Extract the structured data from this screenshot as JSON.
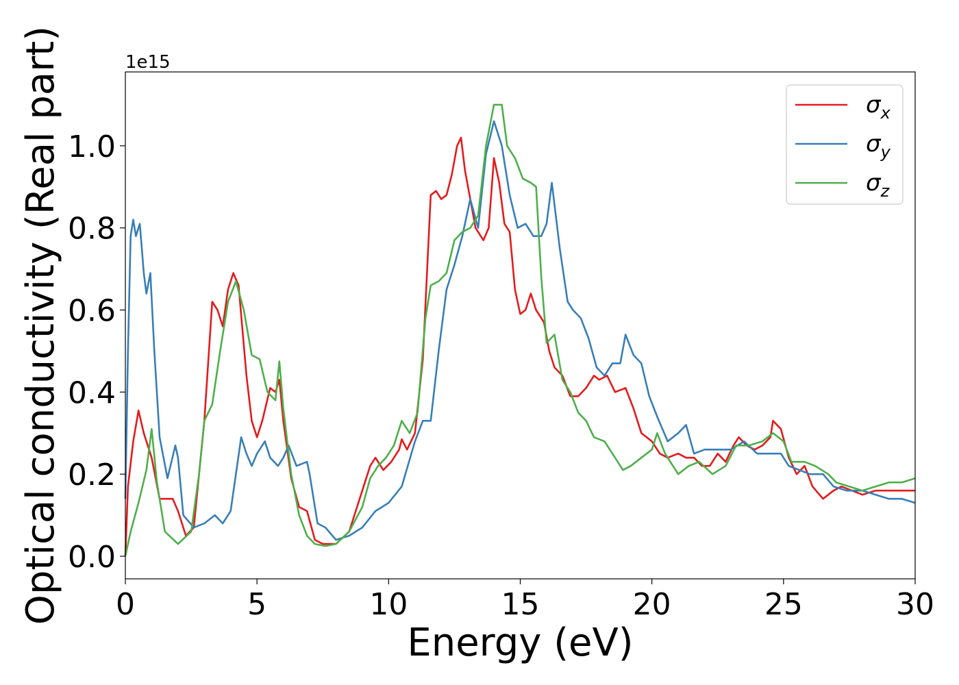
{
  "chart_data": {
    "type": "line",
    "xlabel": "Energy (eV)",
    "ylabel": "Optical conductivity (Real part)",
    "y_offset_label": "1e15",
    "xlim": [
      0,
      30
    ],
    "ylim": [
      -0.055,
      1.18
    ],
    "x_ticks": [
      0,
      5,
      10,
      15,
      20,
      25,
      30
    ],
    "x_tick_labels": [
      "0",
      "5",
      "10",
      "15",
      "20",
      "25",
      "30"
    ],
    "y_ticks": [
      0.0,
      0.2,
      0.4,
      0.6,
      0.8,
      1.0
    ],
    "y_tick_labels": [
      "0.0",
      "0.2",
      "0.4",
      "0.6",
      "0.8",
      "1.0"
    ],
    "grid": false,
    "legend_position": "top-right",
    "series": [
      {
        "name": "σ",
        "subscript": "x",
        "color": "#e41a1c",
        "points": [
          [
            0,
            0
          ],
          [
            0.1,
            0.17
          ],
          [
            0.3,
            0.28
          ],
          [
            0.5,
            0.355
          ],
          [
            0.7,
            0.3
          ],
          [
            1.0,
            0.24
          ],
          [
            1.3,
            0.14
          ],
          [
            1.6,
            0.14
          ],
          [
            1.8,
            0.14
          ],
          [
            2.0,
            0.11
          ],
          [
            2.3,
            0.05
          ],
          [
            2.6,
            0.07
          ],
          [
            3.0,
            0.33
          ],
          [
            3.3,
            0.62
          ],
          [
            3.5,
            0.6
          ],
          [
            3.7,
            0.56
          ],
          [
            3.9,
            0.65
          ],
          [
            4.1,
            0.69
          ],
          [
            4.3,
            0.66
          ],
          [
            4.6,
            0.44
          ],
          [
            4.8,
            0.33
          ],
          [
            5.0,
            0.29
          ],
          [
            5.2,
            0.33
          ],
          [
            5.5,
            0.41
          ],
          [
            5.7,
            0.4
          ],
          [
            5.85,
            0.43
          ],
          [
            6.0,
            0.33
          ],
          [
            6.3,
            0.19
          ],
          [
            6.6,
            0.12
          ],
          [
            6.9,
            0.11
          ],
          [
            7.2,
            0.04
          ],
          [
            7.5,
            0.03
          ],
          [
            8.0,
            0.03
          ],
          [
            8.5,
            0.06
          ],
          [
            9.0,
            0.16
          ],
          [
            9.3,
            0.22
          ],
          [
            9.5,
            0.24
          ],
          [
            9.8,
            0.21
          ],
          [
            10.1,
            0.23
          ],
          [
            10.4,
            0.26
          ],
          [
            10.5,
            0.285
          ],
          [
            10.7,
            0.26
          ],
          [
            11.0,
            0.3
          ],
          [
            11.3,
            0.48
          ],
          [
            11.6,
            0.88
          ],
          [
            11.8,
            0.89
          ],
          [
            12.0,
            0.87
          ],
          [
            12.2,
            0.88
          ],
          [
            12.4,
            0.93
          ],
          [
            12.6,
            1.0
          ],
          [
            12.75,
            1.02
          ],
          [
            12.9,
            0.94
          ],
          [
            13.1,
            0.87
          ],
          [
            13.3,
            0.8
          ],
          [
            13.6,
            0.77
          ],
          [
            13.8,
            0.8
          ],
          [
            14.0,
            0.97
          ],
          [
            14.2,
            0.91
          ],
          [
            14.4,
            0.81
          ],
          [
            14.6,
            0.79
          ],
          [
            14.8,
            0.65
          ],
          [
            15.0,
            0.59
          ],
          [
            15.2,
            0.6
          ],
          [
            15.4,
            0.64
          ],
          [
            15.6,
            0.6
          ],
          [
            15.9,
            0.57
          ],
          [
            16.1,
            0.5
          ],
          [
            16.3,
            0.46
          ],
          [
            16.6,
            0.44
          ],
          [
            16.9,
            0.39
          ],
          [
            17.2,
            0.39
          ],
          [
            17.5,
            0.41
          ],
          [
            17.8,
            0.44
          ],
          [
            18.0,
            0.43
          ],
          [
            18.3,
            0.44
          ],
          [
            18.6,
            0.4
          ],
          [
            19.0,
            0.41
          ],
          [
            19.3,
            0.36
          ],
          [
            19.6,
            0.3
          ],
          [
            20.0,
            0.28
          ],
          [
            20.3,
            0.25
          ],
          [
            20.6,
            0.24
          ],
          [
            21.0,
            0.25
          ],
          [
            21.3,
            0.24
          ],
          [
            21.6,
            0.24
          ],
          [
            21.9,
            0.22
          ],
          [
            22.2,
            0.22
          ],
          [
            22.5,
            0.25
          ],
          [
            22.8,
            0.23
          ],
          [
            23.1,
            0.27
          ],
          [
            23.3,
            0.29
          ],
          [
            23.6,
            0.27
          ],
          [
            23.9,
            0.26
          ],
          [
            24.2,
            0.27
          ],
          [
            24.5,
            0.29
          ],
          [
            24.6,
            0.33
          ],
          [
            24.9,
            0.31
          ],
          [
            25.2,
            0.24
          ],
          [
            25.5,
            0.2
          ],
          [
            25.8,
            0.22
          ],
          [
            26.1,
            0.17
          ],
          [
            26.5,
            0.14
          ],
          [
            26.9,
            0.16
          ],
          [
            27.2,
            0.17
          ],
          [
            27.6,
            0.16
          ],
          [
            28.0,
            0.15
          ],
          [
            28.5,
            0.16
          ],
          [
            29.0,
            0.16
          ],
          [
            29.5,
            0.16
          ],
          [
            30.0,
            0.16
          ]
        ]
      },
      {
        "name": "σ",
        "subscript": "y",
        "color": "#377eb8",
        "points": [
          [
            0,
            0.14
          ],
          [
            0.1,
            0.5
          ],
          [
            0.2,
            0.78
          ],
          [
            0.3,
            0.82
          ],
          [
            0.4,
            0.78
          ],
          [
            0.55,
            0.81
          ],
          [
            0.7,
            0.69
          ],
          [
            0.8,
            0.64
          ],
          [
            0.95,
            0.69
          ],
          [
            1.1,
            0.5
          ],
          [
            1.3,
            0.29
          ],
          [
            1.6,
            0.19
          ],
          [
            1.9,
            0.27
          ],
          [
            2.0,
            0.24
          ],
          [
            2.2,
            0.1
          ],
          [
            2.6,
            0.07
          ],
          [
            3.0,
            0.08
          ],
          [
            3.4,
            0.1
          ],
          [
            3.7,
            0.08
          ],
          [
            4.0,
            0.11
          ],
          [
            4.2,
            0.2
          ],
          [
            4.4,
            0.29
          ],
          [
            4.6,
            0.25
          ],
          [
            4.8,
            0.22
          ],
          [
            5.0,
            0.25
          ],
          [
            5.3,
            0.28
          ],
          [
            5.5,
            0.24
          ],
          [
            5.8,
            0.22
          ],
          [
            6.0,
            0.24
          ],
          [
            6.2,
            0.27
          ],
          [
            6.5,
            0.22
          ],
          [
            6.9,
            0.23
          ],
          [
            7.0,
            0.2
          ],
          [
            7.3,
            0.08
          ],
          [
            7.6,
            0.07
          ],
          [
            8.0,
            0.04
          ],
          [
            8.5,
            0.05
          ],
          [
            9.0,
            0.07
          ],
          [
            9.5,
            0.11
          ],
          [
            10.0,
            0.13
          ],
          [
            10.5,
            0.17
          ],
          [
            11.0,
            0.28
          ],
          [
            11.3,
            0.33
          ],
          [
            11.6,
            0.33
          ],
          [
            11.9,
            0.5
          ],
          [
            12.2,
            0.65
          ],
          [
            12.5,
            0.71
          ],
          [
            12.8,
            0.78
          ],
          [
            13.1,
            0.87
          ],
          [
            13.4,
            0.8
          ],
          [
            13.7,
            0.98
          ],
          [
            14.0,
            1.06
          ],
          [
            14.3,
            1.0
          ],
          [
            14.6,
            0.88
          ],
          [
            14.9,
            0.8
          ],
          [
            15.2,
            0.81
          ],
          [
            15.5,
            0.78
          ],
          [
            15.8,
            0.78
          ],
          [
            16.0,
            0.81
          ],
          [
            16.2,
            0.91
          ],
          [
            16.5,
            0.75
          ],
          [
            16.8,
            0.62
          ],
          [
            17.0,
            0.6
          ],
          [
            17.3,
            0.58
          ],
          [
            17.6,
            0.53
          ],
          [
            17.9,
            0.46
          ],
          [
            18.2,
            0.44
          ],
          [
            18.5,
            0.47
          ],
          [
            18.8,
            0.47
          ],
          [
            19.0,
            0.54
          ],
          [
            19.3,
            0.49
          ],
          [
            19.6,
            0.47
          ],
          [
            19.9,
            0.39
          ],
          [
            20.2,
            0.34
          ],
          [
            20.6,
            0.28
          ],
          [
            21.0,
            0.3
          ],
          [
            21.3,
            0.32
          ],
          [
            21.6,
            0.25
          ],
          [
            22.0,
            0.26
          ],
          [
            22.5,
            0.26
          ],
          [
            23.0,
            0.26
          ],
          [
            23.5,
            0.28
          ],
          [
            24.0,
            0.25
          ],
          [
            24.5,
            0.25
          ],
          [
            24.9,
            0.25
          ],
          [
            25.2,
            0.22
          ],
          [
            25.6,
            0.21
          ],
          [
            26.0,
            0.2
          ],
          [
            26.5,
            0.2
          ],
          [
            26.9,
            0.17
          ],
          [
            27.4,
            0.16
          ],
          [
            28.0,
            0.16
          ],
          [
            28.5,
            0.15
          ],
          [
            29.0,
            0.14
          ],
          [
            29.5,
            0.14
          ],
          [
            30.0,
            0.13
          ]
        ]
      },
      {
        "name": "σ",
        "subscript": "z",
        "color": "#4daf4a",
        "points": [
          [
            0,
            0
          ],
          [
            0.2,
            0.06
          ],
          [
            0.5,
            0.13
          ],
          [
            0.8,
            0.21
          ],
          [
            1.0,
            0.31
          ],
          [
            1.2,
            0.18
          ],
          [
            1.5,
            0.06
          ],
          [
            2.0,
            0.03
          ],
          [
            2.5,
            0.06
          ],
          [
            2.8,
            0.2
          ],
          [
            3.0,
            0.33
          ],
          [
            3.3,
            0.37
          ],
          [
            3.6,
            0.5
          ],
          [
            3.9,
            0.62
          ],
          [
            4.2,
            0.67
          ],
          [
            4.5,
            0.6
          ],
          [
            4.8,
            0.49
          ],
          [
            5.1,
            0.48
          ],
          [
            5.4,
            0.4
          ],
          [
            5.7,
            0.38
          ],
          [
            5.85,
            0.475
          ],
          [
            6.0,
            0.36
          ],
          [
            6.3,
            0.2
          ],
          [
            6.6,
            0.1
          ],
          [
            6.9,
            0.05
          ],
          [
            7.2,
            0.03
          ],
          [
            7.6,
            0.025
          ],
          [
            8.0,
            0.03
          ],
          [
            8.5,
            0.06
          ],
          [
            9.0,
            0.12
          ],
          [
            9.3,
            0.19
          ],
          [
            9.6,
            0.22
          ],
          [
            9.9,
            0.24
          ],
          [
            10.2,
            0.27
          ],
          [
            10.5,
            0.33
          ],
          [
            10.8,
            0.3
          ],
          [
            11.1,
            0.35
          ],
          [
            11.4,
            0.58
          ],
          [
            11.6,
            0.66
          ],
          [
            11.9,
            0.67
          ],
          [
            12.2,
            0.69
          ],
          [
            12.5,
            0.77
          ],
          [
            12.8,
            0.79
          ],
          [
            13.1,
            0.8
          ],
          [
            13.4,
            0.83
          ],
          [
            13.7,
            1.0
          ],
          [
            14.0,
            1.1
          ],
          [
            14.3,
            1.1
          ],
          [
            14.5,
            1.0
          ],
          [
            14.8,
            0.97
          ],
          [
            15.1,
            0.92
          ],
          [
            15.4,
            0.91
          ],
          [
            15.6,
            0.9
          ],
          [
            15.8,
            0.68
          ],
          [
            16.0,
            0.52
          ],
          [
            16.3,
            0.54
          ],
          [
            16.6,
            0.43
          ],
          [
            16.9,
            0.4
          ],
          [
            17.2,
            0.35
          ],
          [
            17.5,
            0.33
          ],
          [
            17.8,
            0.29
          ],
          [
            18.2,
            0.28
          ],
          [
            18.6,
            0.24
          ],
          [
            18.9,
            0.21
          ],
          [
            19.2,
            0.22
          ],
          [
            19.6,
            0.24
          ],
          [
            20.0,
            0.26
          ],
          [
            20.2,
            0.3
          ],
          [
            20.5,
            0.25
          ],
          [
            20.8,
            0.22
          ],
          [
            21.0,
            0.2
          ],
          [
            21.4,
            0.22
          ],
          [
            21.8,
            0.23
          ],
          [
            22.3,
            0.2
          ],
          [
            22.8,
            0.22
          ],
          [
            23.2,
            0.27
          ],
          [
            23.7,
            0.27
          ],
          [
            24.2,
            0.28
          ],
          [
            24.6,
            0.3
          ],
          [
            25.0,
            0.28
          ],
          [
            25.3,
            0.23
          ],
          [
            25.8,
            0.23
          ],
          [
            26.2,
            0.22
          ],
          [
            26.7,
            0.2
          ],
          [
            27.0,
            0.18
          ],
          [
            27.5,
            0.17
          ],
          [
            28.0,
            0.16
          ],
          [
            28.5,
            0.17
          ],
          [
            29.0,
            0.18
          ],
          [
            29.5,
            0.18
          ],
          [
            30.0,
            0.19
          ]
        ]
      }
    ]
  }
}
